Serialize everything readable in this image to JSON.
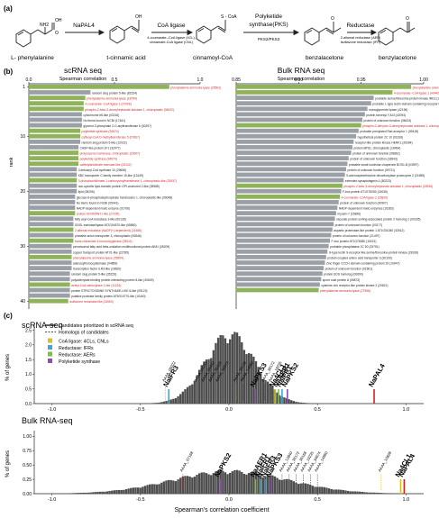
{
  "panel_a": {
    "label": "(a)",
    "compounds": [
      "L- phenylalanine",
      "t-cinnamic acid",
      "cinnamoyl-CoA",
      "benzalacetone",
      "benzylacetone"
    ],
    "enzymes": [
      {
        "name": "NaPAL4",
        "note": ""
      },
      {
        "name": "CoA ligase",
        "note": "4-coumarate--CoA ligase (4CL),\ncinnamate-CoA ligase (CNL)"
      },
      {
        "name": "Polyketide\nsynthase(PKS)",
        "note": "PKS2/PKS3"
      },
      {
        "name": "Reductase",
        "note": "2-alkenal reductase (AER)\nisoflavone reductase (IFR)"
      }
    ],
    "chem_labels": {
      "oh": "OH",
      "nh2": "NH2",
      "o": "O",
      "s_coa": "S - CoA"
    }
  },
  "panel_b": {
    "label": "(b)",
    "left": {
      "title": "scRNA seq",
      "axis_title": "Spearman correlation",
      "ticks": [
        "0.0",
        "0.5",
        "1.0"
      ],
      "ylabel": "rank",
      "rank_ticks": [
        "1",
        "10",
        "20",
        "30",
        "40"
      ],
      "genes": [
        {
          "label": "phenylalanine ammonia-lyase (25502)",
          "v": 0.82,
          "h": true
        },
        {
          "label": "random slug protein 5-like (81524)",
          "v": 0.36,
          "h": false
        },
        {
          "label": "phenylalanine ammonia-lyase (18754)",
          "v": 0.33,
          "h": true
        },
        {
          "label": "4-coumarate--CoA ligase 1 (27096)",
          "v": 0.32,
          "h": true
        },
        {
          "label": "phospho-2-keto-3-deoxyheptonate aldolase 1, chloroplastic (06022)",
          "v": 0.32,
          "h": true
        },
        {
          "label": "cytochrome b5-like (03216)",
          "v": 0.31,
          "h": false
        },
        {
          "label": "No items found in NCBI (17461)",
          "v": 0.31,
          "h": false
        },
        {
          "label": "glycerol-3-phosphate 2-O-acyltransferase 6 (30297)",
          "v": 0.31,
          "h": false
        },
        {
          "label": "polyketide synthase (34674)",
          "v": 0.3,
          "h": true
        },
        {
          "label": "caffeoyl-CoA O-methyltransferase 5 (07667)",
          "v": 0.3,
          "h": true
        },
        {
          "label": "random slug protein 5-like (12022)",
          "v": 0.3,
          "h": false
        },
        {
          "label": "CASP-like protein 1F1 (32977)",
          "v": 0.29,
          "h": false
        },
        {
          "label": "prolycopene isomerase, chloroplastic (16007)",
          "v": 0.29,
          "h": true
        },
        {
          "label": "polyketide synthase (34674)",
          "v": 0.29,
          "h": true
        },
        {
          "label": "caffeoylshikimate esterase-like (34102)",
          "v": 0.29,
          "h": true
        },
        {
          "label": "3-ketoacyl-CoA synthase 10 (29658)",
          "v": 0.28,
          "h": false
        },
        {
          "label": "KBC transporter C family member 15-like (13149)",
          "v": 0.28,
          "h": false
        },
        {
          "label": "3-phosphoshikimate 1-carboxyvinyltransferase 1, chloroplastic-like (25337)",
          "v": 0.28,
          "h": true
        },
        {
          "label": "non-specific lipid-transfer protein GPI-anchored 2-like (28588)",
          "v": 0.28,
          "h": false
        },
        {
          "label": "lipid (05206)",
          "v": 0.28,
          "h": false
        },
        {
          "label": "glucose-6-phosphate/phosphate translocator 1, chloroplastic-like (09048)",
          "v": 0.27,
          "h": false
        },
        {
          "label": "No items found in NCBI (05441)",
          "v": 0.27,
          "h": false
        },
        {
          "label": "NADP-dependent malic enzyme (01706)",
          "v": 0.27,
          "h": false
        },
        {
          "label": "protein ODORANT1-like (27195)",
          "v": 0.27,
          "h": true
        },
        {
          "label": "fatty acyl-CoA reductase 3-like (00128)",
          "v": 0.26,
          "h": false
        },
        {
          "label": "GDSL esterase/lipase AT2G04570-like (08850)",
          "v": 0.26,
          "h": false
        },
        {
          "label": "2-alkenal reductase (NADP(+)-dependent) (21486)",
          "v": 0.26,
          "h": true
        },
        {
          "label": "probable anion transporter 3, chloroplastic (00846)",
          "v": 0.26,
          "h": false
        },
        {
          "label": "trans-cinnamate 4-monooxygenase (25511)",
          "v": 0.26,
          "h": true
        },
        {
          "label": "peroxisomal fatty acid beta-oxidation multifunctional protein AIM1 (05209)",
          "v": 0.25,
          "h": false
        },
        {
          "label": "copper transport protein ATX1-like (22785)",
          "v": 0.25,
          "h": false
        },
        {
          "label": "phenylalanine ammonia-lyase (25854)",
          "v": 0.25,
          "h": true
        },
        {
          "label": "adenosylhomocysteinase (04859)",
          "v": 0.25,
          "h": false
        },
        {
          "label": "transcription factor ILR3-like (18620)",
          "v": 0.25,
          "h": false
        },
        {
          "label": "random slug protein 5-like (35153)",
          "v": 0.24,
          "h": false
        },
        {
          "label": "polyadenylate-binding protein-interacting protein 8-like (40649)",
          "v": 0.24,
          "h": false
        },
        {
          "label": "acetyl-CoA carboxylase 1-like (11224)",
          "v": 0.24,
          "h": true
        },
        {
          "label": "protein STRICTOSIDINE SYNTHASE-LIKE 6-like (09123)",
          "v": 0.24,
          "h": false
        },
        {
          "label": "putative protease family protein AT5G10770-like (10440)",
          "v": 0.24,
          "h": false
        },
        {
          "label": "isoflavone reductase-like (14960)",
          "v": 0.23,
          "h": true
        }
      ]
    },
    "right": {
      "title": "Bulk RNA seq",
      "axis_title": "Spearman correlation",
      "ticks": [
        "0.85",
        "0.90",
        "0.95",
        "1.00"
      ],
      "genes": [
        {
          "label": "phenylalanine ammonia-lyase (25502)",
          "v": 0.99,
          "h": true
        },
        {
          "label": "4-coumarate--CoA ligase 1 (40442)",
          "v": 0.975,
          "h": true
        },
        {
          "label": "probable serine/threonine-protein kinase IRE3 (13085)",
          "v": 0.96,
          "h": false
        },
        {
          "label": "probable L-type lectin-domain containing receptor kinase S.5 (30272)",
          "v": 0.958,
          "h": false
        },
        {
          "label": "monoglyceride lipase (42196)",
          "v": 0.955,
          "h": false
        },
        {
          "label": "protein farnesyl YJU3 (42094)",
          "v": 0.953,
          "h": false
        },
        {
          "label": "protein of unknown function (36433)",
          "v": 0.951,
          "h": false
        },
        {
          "label": "phospho-2-dehydro-3-deoxyheptonate aldolase 1, chloroplastic (15935)",
          "v": 0.95,
          "h": true
        },
        {
          "label": "probable prenylated Rab acceptor 1 (09418)",
          "v": 0.948,
          "h": false
        },
        {
          "label": "hypothetical protein 2C 10 (01618)",
          "v": 0.946,
          "h": false
        },
        {
          "label": "receptor-like protein kinase HERK1 (29284)",
          "v": 0.944,
          "h": false
        },
        {
          "label": "protein BPS1, chloroplastic (18454)",
          "v": 0.943,
          "h": false
        },
        {
          "label": "protein of unknown function (08862)",
          "v": 0.942,
          "h": false
        },
        {
          "label": "protein of unknown function (18543)",
          "v": 0.94,
          "h": false
        },
        {
          "label": "probable small nucleolar chaperone BOS1-B (03997)",
          "v": 0.939,
          "h": false
        },
        {
          "label": "protein of unknown function (09721)",
          "v": 0.938,
          "h": false
        },
        {
          "label": "S-adenosylmethionine decarboxylase proenzyme 2 (21655)",
          "v": 0.937,
          "h": false
        },
        {
          "label": "extended synaptotagmin-1 (80223)",
          "v": 0.936,
          "h": false
        },
        {
          "label": "phospho-2-keto-3-deoxyheptonate aldolase 1, chloroplastic (15936)",
          "v": 0.935,
          "h": true
        },
        {
          "label": "F-box protein AT1G78280 (15035)",
          "v": 0.934,
          "h": false
        },
        {
          "label": "4-coumarate--CoA ligase 2 (15826)",
          "v": 0.933,
          "h": true
        },
        {
          "label": "protein of unknown function (30907)",
          "v": 0.932,
          "h": false
        },
        {
          "label": "NADP-dependent malic enzymes (16363)",
          "v": 0.931,
          "h": false
        },
        {
          "label": "myosin-7 (15896)",
          "v": 0.93,
          "h": false
        },
        {
          "label": "vacuolar protein sorting-associated protein 2 homolog 1 (00335)",
          "v": 0.929,
          "h": false
        },
        {
          "label": "protein of unknown function (03177)",
          "v": 0.928,
          "h": false
        },
        {
          "label": "aspartic proteinase-like protein 1 AT1G01080 (32612)",
          "v": 0.927,
          "h": false
        },
        {
          "label": "protein of unknown function (21497)",
          "v": 0.926,
          "h": false
        },
        {
          "label": "F-box protein AT1G78280 (15021)",
          "v": 0.925,
          "h": false
        },
        {
          "label": "probable phosphatase 2C 50 (33751)",
          "v": 0.924,
          "h": false
        },
        {
          "label": "G-type lectin S-receptor-like serine/threonine-protein kinase (28108)",
          "v": 0.923,
          "h": false
        },
        {
          "label": "protein-coupled amino acid transporter 3 (30109)",
          "v": 0.922,
          "h": false
        },
        {
          "label": "Zinc finger CCCH domain-containing protein 29 (10947)",
          "v": 0.921,
          "h": false
        },
        {
          "label": "protein of unknown function (01501)",
          "v": 0.92,
          "h": false
        },
        {
          "label": "protein EDS homolog (00690)",
          "v": 0.919,
          "h": false
        },
        {
          "label": "spore coat protein A (05873)",
          "v": 0.918,
          "h": false
        },
        {
          "label": "cysteine-rich receptor-like protein kinase 2 (20621)",
          "v": 0.917,
          "h": false
        },
        {
          "label": "phenylalanine ammonia-lyase (27558)",
          "v": 0.916,
          "h": true
        }
      ]
    }
  },
  "panel_c": {
    "label": "(c)",
    "ylabel": "% of genes",
    "xlabel": "Spearman's correlation coefficient",
    "xticks": [
      "-1.0",
      "-0.5",
      "0.0",
      "0.5",
      "1.0"
    ],
    "legend": [
      {
        "label": "Candidates prioritized in scRNA seq",
        "style": "solid",
        "color": "#111111"
      },
      {
        "label": "Homologs of candidates",
        "style": "dashed",
        "color": "#111111"
      },
      {
        "label": "CoA ligase: 4CLs, CNLs",
        "style": "swatch",
        "color": "#d6c31a"
      },
      {
        "label": "Reductase: IFRs",
        "style": "swatch",
        "color": "#3aa8d8"
      },
      {
        "label": "Reductase: AERs",
        "style": "swatch",
        "color": "#7fbf3a"
      },
      {
        "label": "Polyketide synthase",
        "style": "swatch",
        "color": "#8a4fb0"
      }
    ],
    "top": {
      "title": "scRNA-seq",
      "yticks": [
        "0.0",
        "0.5",
        "1.0",
        "1.5",
        "2.0",
        "2.5"
      ],
      "ymax": 2.7,
      "hist_peak": 0.0,
      "hist_width": 0.14,
      "hist_height": 2.3,
      "markers": [
        {
          "label": "NaPAL4",
          "x": 0.82,
          "color": "#d62020",
          "big": true
        },
        {
          "label": "NaPKS2",
          "x": 0.33,
          "color": "#8a4fb0",
          "big": true
        },
        {
          "label": "NaIFR1",
          "x": 0.3,
          "color": "#3aa8d8",
          "big": true
        },
        {
          "label": "NaAER1",
          "x": 0.28,
          "color": "#7fbf3a",
          "big": true
        },
        {
          "label": "Na4CL1",
          "x": 0.26,
          "color": "#d6c31a",
          "big": true
        },
        {
          "label": "NaPKS3",
          "x": 0.15,
          "color": "#8a4fb0",
          "big": true
        },
        {
          "label": "NaIFR3",
          "x": -0.34,
          "color": "#3aa8d8",
          "big": true
        },
        {
          "label": "AAAA_06022",
          "x": -0.36,
          "color": "#d6c31a",
          "big": false
        },
        {
          "label": "AAAA_04241",
          "x": -0.18,
          "color": "#555555",
          "big": false
        },
        {
          "label": "AAAA_04442",
          "x": -0.14,
          "color": "#555555",
          "big": false
        },
        {
          "label": "AAAA_36168",
          "x": -0.1,
          "color": "#555555",
          "big": false
        },
        {
          "label": "AAAA_34674",
          "x": -0.06,
          "color": "#555555",
          "big": false
        },
        {
          "label": "AAAA_36728",
          "x": 0.04,
          "color": "#d6c31a",
          "big": false
        },
        {
          "label": "AAAA_14960",
          "x": 0.08,
          "color": "#555555",
          "big": false
        },
        {
          "label": "AAAA_36172",
          "x": 0.2,
          "color": "#555555",
          "big": false
        },
        {
          "label": "AAAA_19235",
          "x": 0.24,
          "color": "#555555",
          "big": false
        }
      ]
    },
    "bottom": {
      "title": "Bulk RNA-seq",
      "yticks": [
        "0.00",
        "0.25",
        "0.50",
        "0.75",
        "1.00"
      ],
      "ymax": 1.1,
      "hist_peak": 0.0,
      "hist_width": 0.33,
      "hist_height": 0.38,
      "markers": [
        {
          "label": "NaPAL4",
          "x": 0.99,
          "color": "#d62020",
          "big": true
        },
        {
          "label": "Na4CL1",
          "x": 0.97,
          "color": "#d6c31a",
          "big": true
        },
        {
          "label": "NaPKS2",
          "x": -0.05,
          "color": "#8a4fb0",
          "big": true
        },
        {
          "label": "NaAER1",
          "x": 0.15,
          "color": "#7fbf3a",
          "big": true
        },
        {
          "label": "NaIFR1",
          "x": 0.18,
          "color": "#3aa8d8",
          "big": true
        },
        {
          "label": "NaIFR3",
          "x": 0.21,
          "color": "#3aa8d8",
          "big": true
        },
        {
          "label": "NaPKS3",
          "x": 0.24,
          "color": "#8a4fb0",
          "big": true
        },
        {
          "label": "AAAA_07168",
          "x": -0.26,
          "color": "#d62020",
          "big": false
        },
        {
          "label": "AAAA_12840",
          "x": 0.3,
          "color": "#555555",
          "big": false
        },
        {
          "label": "AAAA_36172",
          "x": 0.34,
          "color": "#555555",
          "big": false
        },
        {
          "label": "AAAA_36168",
          "x": 0.38,
          "color": "#555555",
          "big": false
        },
        {
          "label": "AAAA_19235",
          "x": 0.42,
          "color": "#555555",
          "big": false
        },
        {
          "label": "AAAA_34674",
          "x": 0.46,
          "color": "#555555",
          "big": false
        },
        {
          "label": "AAAA_14960",
          "x": 0.5,
          "color": "#555555",
          "big": false
        },
        {
          "label": "AAAA_10828",
          "x": 0.86,
          "color": "#d6c31a",
          "big": false
        }
      ]
    }
  }
}
